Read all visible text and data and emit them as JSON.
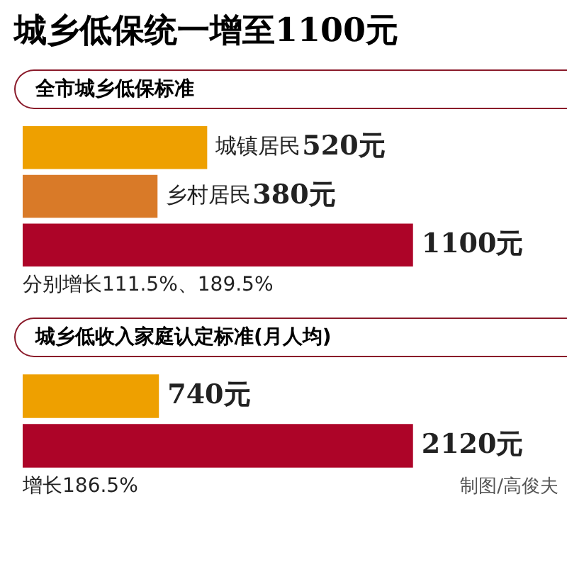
{
  "chart_data": [
    {
      "type": "bar",
      "orientation": "horizontal",
      "title": "城乡低保统一增至1100元",
      "subtitle": "全市城乡低保标准",
      "categories": [
        null,
        null,
        null
      ],
      "values": [
        520,
        380,
        1100
      ],
      "colors": [
        "#eea000",
        "#d97a28",
        "#ad0428"
      ],
      "value_labels": [
        "城镇居民520元",
        "乡村居民380元",
        "1100元"
      ],
      "annotations": [
        "分别增长111.5%、189.5%"
      ]
    },
    {
      "type": "bar",
      "orientation": "horizontal",
      "subtitle": "城乡低收入家庭认定标准(月人均)",
      "categories": [
        null,
        null
      ],
      "values": [
        740,
        2120
      ],
      "colors": [
        "#eea000",
        "#ad0428"
      ],
      "value_labels": [
        "740元",
        "2120元"
      ],
      "annotations": [
        "增长186.5%",
        "制图/高俊夫"
      ]
    }
  ]
}
